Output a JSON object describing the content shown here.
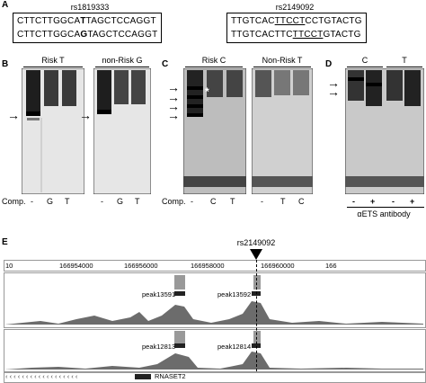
{
  "panel_a": {
    "label": "A",
    "snp1": {
      "name": "rs1819333",
      "seq1_pre": "CTTCTTGGCA",
      "seq1_var": "T",
      "seq1_post": "TAGCTCCAGGT",
      "seq2_pre": "CTTCTTGGCA",
      "seq2_var": "G",
      "seq2_post": "TAGCTCCAGGT"
    },
    "snp2": {
      "name": "rs2149092",
      "seq1_pre": "TTGTCAC",
      "seq1_motif": "TTCCT",
      "seq1_post": "CCTGTACTG",
      "seq2_pre": "TTGTCACTTC",
      "seq2_motif": "TTCCT",
      "seq2_post": "GTACTG"
    }
  },
  "panel_b": {
    "label": "B",
    "gel1_title": "Risk T",
    "gel2_title": "non-Risk G",
    "comp_label": "Comp.",
    "gel1_lanes": [
      "-",
      "G",
      "T"
    ],
    "gel2_lanes": [
      "-",
      "G",
      "T"
    ]
  },
  "panel_c": {
    "label": "C",
    "gel1_title": "Risk C",
    "gel2_title": "Non-Risk T",
    "comp_label": "Comp.",
    "star": "*",
    "gel1_lanes": [
      "-",
      "C",
      "T"
    ],
    "gel2_lanes": [
      "-",
      "T",
      "C"
    ]
  },
  "panel_d": {
    "label": "D",
    "col1_title": "C",
    "col2_title": "T",
    "lanes": [
      "-",
      "+",
      "-",
      "+"
    ],
    "antibody_label": "αETS antibody"
  },
  "panel_e": {
    "label": "E",
    "snp_label": "rs2149092",
    "ruler_ticks": [
      "10",
      "166954000",
      "166956000",
      "166958000",
      "166960000",
      "166"
    ],
    "peaks": [
      "peak13591",
      "peak13592",
      "peak12813",
      "peak12814"
    ],
    "gene_label": "RNASET2",
    "gene_arrows": "‹ ‹ ‹ ‹ ‹ ‹ ‹ ‹ ‹ ‹ ‹ ‹ ‹ ‹ ‹ ‹ ‹ ‹"
  }
}
